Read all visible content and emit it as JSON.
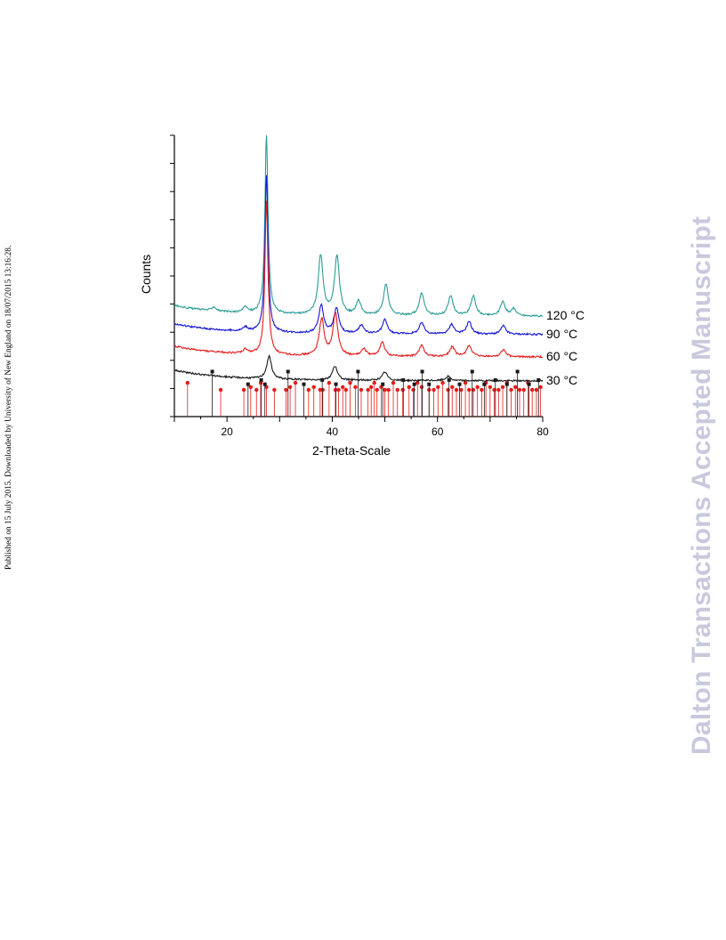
{
  "side_note": "Published on 15 July 2015. Downloaded by University of New England on 18/07/2015 13:16:28.",
  "watermark": "Dalton Transactions Accepted Manuscript",
  "chart_data": {
    "type": "line",
    "title": "",
    "xlabel": "2-Theta-Scale",
    "ylabel": "Counts",
    "xlim": [
      10,
      80
    ],
    "ylim": [
      0,
      10
    ],
    "x_ticks": [
      20,
      40,
      60,
      80
    ],
    "grid": false,
    "legend": "labels at right end of each curve",
    "colors": {
      "120 °C": "#2a9c96",
      "90 °C": "#1414d6",
      "60 °C": "#e41c1c",
      "30 °C": "#1a1a1a",
      "ref_red": "#e41c1c",
      "ref_black": "#1a1a1a"
    },
    "series": [
      {
        "name": "120 °C",
        "baseline": 3.6,
        "peaks": [
          [
            17.5,
            0.15
          ],
          [
            23.5,
            0.2
          ],
          [
            27.5,
            6.4
          ],
          [
            37.8,
            2.1
          ],
          [
            40.9,
            2.1
          ],
          [
            45,
            0.5
          ],
          [
            50.2,
            1.1
          ],
          [
            57,
            0.8
          ],
          [
            62.5,
            0.7
          ],
          [
            66.8,
            0.7
          ],
          [
            72.4,
            0.5
          ],
          [
            74.5,
            0.25
          ]
        ]
      },
      {
        "name": "90 °C",
        "baseline": 2.95,
        "peaks": [
          [
            23.5,
            0.15
          ],
          [
            27.5,
            5.6
          ],
          [
            37.9,
            1.0
          ],
          [
            40.8,
            0.9
          ],
          [
            45.5,
            0.3
          ],
          [
            50,
            0.5
          ],
          [
            57,
            0.4
          ],
          [
            62.7,
            0.35
          ],
          [
            66,
            0.45
          ],
          [
            72.5,
            0.3
          ]
        ]
      },
      {
        "name": "60 °C",
        "baseline": 2.15,
        "peaks": [
          [
            23.5,
            0.15
          ],
          [
            27.5,
            5.5
          ],
          [
            38,
            1.3
          ],
          [
            40.6,
            1.5
          ],
          [
            46,
            0.25
          ],
          [
            49.5,
            0.5
          ],
          [
            57,
            0.4
          ],
          [
            62.8,
            0.35
          ],
          [
            66,
            0.4
          ],
          [
            72.5,
            0.25
          ]
        ]
      },
      {
        "name": "30 °C",
        "baseline": 1.3,
        "peaks": [
          [
            28,
            0.8
          ],
          [
            40.5,
            0.5
          ],
          [
            50,
            0.3
          ],
          [
            62,
            0.15
          ]
        ]
      }
    ],
    "reference_red": [
      12.5,
      18.8,
      23.2,
      24.5,
      25.6,
      26.4,
      27.5,
      29,
      31.2,
      32,
      33,
      35.5,
      36.5,
      37.7,
      38.2,
      39.4,
      40.6,
      41.2,
      42,
      42.6,
      43.4,
      44.4,
      45.5,
      46.8,
      47.4,
      48,
      48.5,
      49.3,
      50,
      50.7,
      51.6,
      52.4,
      53.4,
      54.6,
      55.4,
      56.2,
      57,
      58.4,
      59.3,
      60.1,
      61,
      62,
      62.8,
      63.6,
      64.5,
      65.3,
      66,
      66.8,
      67.6,
      68.4,
      69.2,
      70,
      70.8,
      71.6,
      72.4,
      73.2,
      74,
      74.8,
      75.6,
      76.4,
      77.2,
      78,
      78.8,
      79.6
    ],
    "reference_black": [
      17.2,
      24,
      26.5,
      27.2,
      31.6,
      34.6,
      38.1,
      40.7,
      44.9,
      49.6,
      53.5,
      55.6,
      57.1,
      58.4,
      62.2,
      64.2,
      66.6,
      68.9,
      71,
      73.2,
      75.2,
      77.4,
      79.2
    ]
  }
}
